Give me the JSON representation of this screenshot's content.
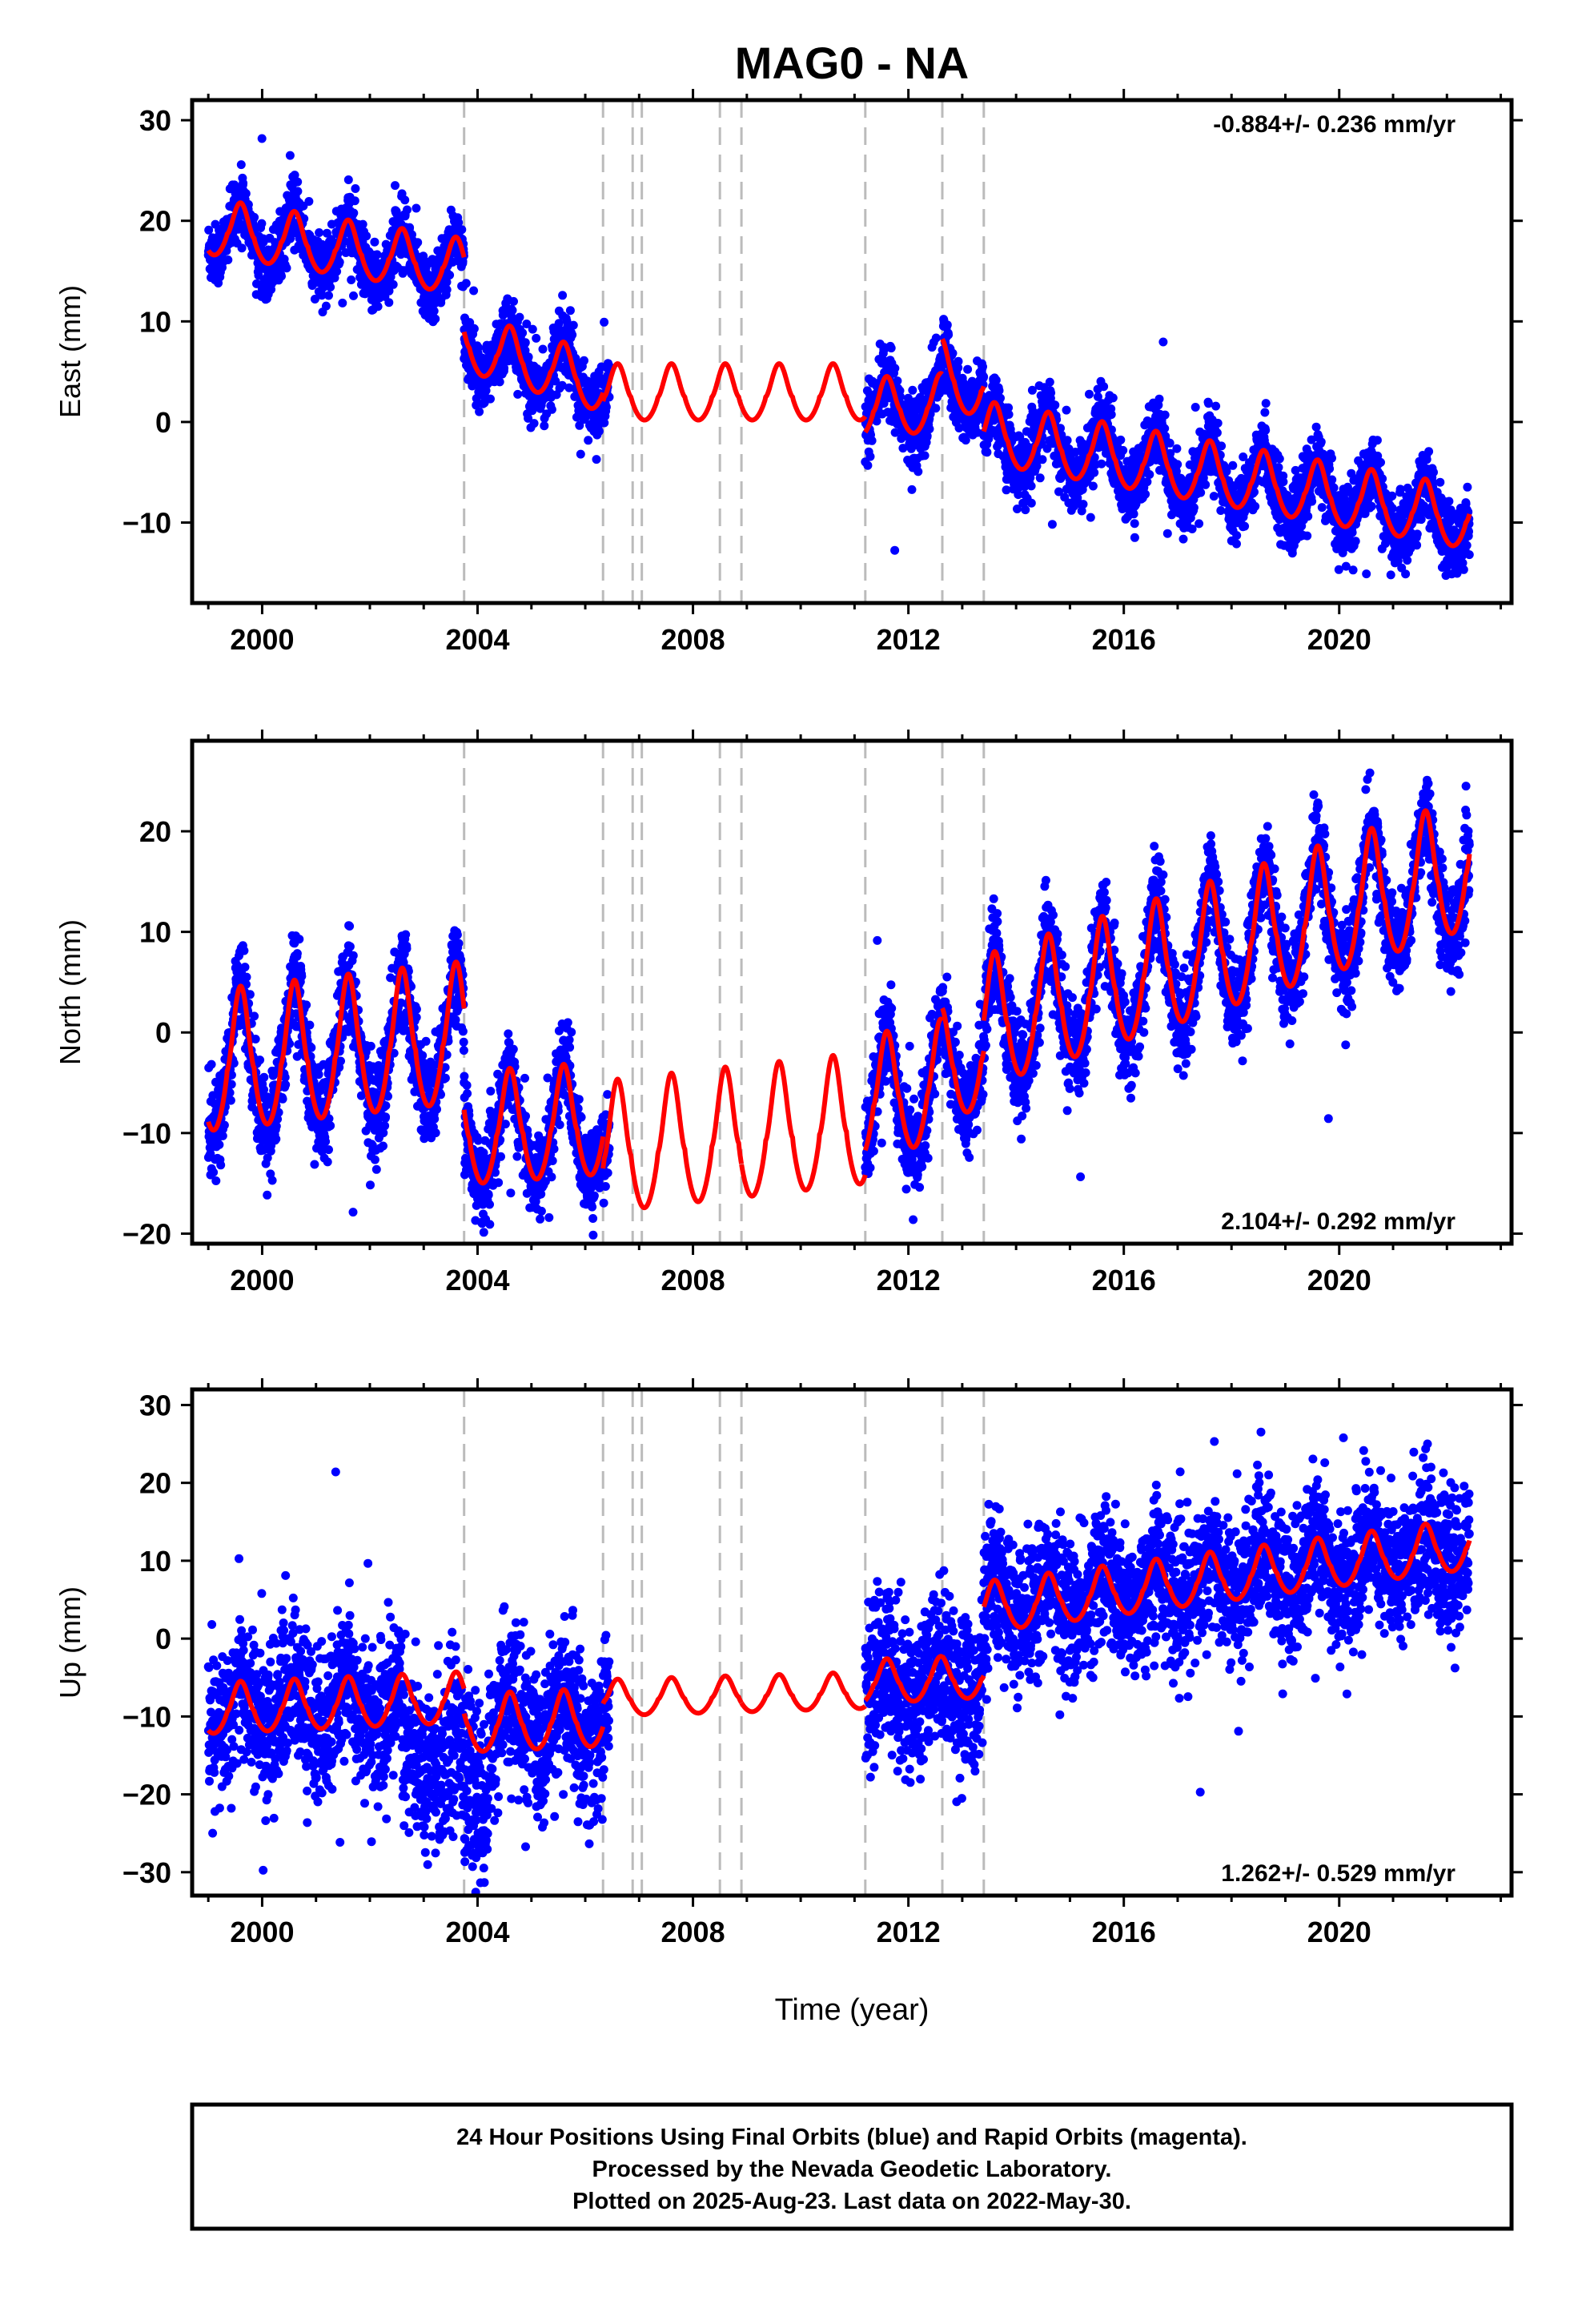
{
  "title": "MAG0 - NA",
  "colors": {
    "final_orbits": "#0000ff",
    "model_fit": "#ff0000",
    "offset_lines": "#bbbbbb"
  },
  "x_axis_label": "Time (year)",
  "caption": [
    "24 Hour Positions Using Final Orbits (blue) and Rapid Orbits (magenta).",
    "Processed by the Nevada Geodetic Laboratory.",
    "Plotted on 2025-Aug-23. Last data on 2022-May-30."
  ],
  "chart_data": [
    {
      "type": "scatter",
      "component": "east",
      "ylabel": "East (mm)",
      "xlabel": "",
      "xlim": [
        1998.7,
        2023.2
      ],
      "ylim": [
        -18,
        32
      ],
      "xticks": [
        2000,
        2004,
        2008,
        2012,
        2016,
        2020
      ],
      "yticks": [
        -10,
        0,
        10,
        20,
        30
      ],
      "rate_label": "-0.884+/- 0.236 mm/yr",
      "rate_position": "top-right",
      "offset_epochs": [
        2003.75,
        2006.33,
        2006.88,
        2007.05,
        2008.5,
        2008.9,
        2011.2,
        2012.63,
        2013.4
      ],
      "model": [
        {
          "start": 1999.0,
          "end": 2003.75,
          "base": 19.0,
          "slope": -0.85,
          "amp": 3.0
        },
        {
          "start": 2003.75,
          "end": 2006.33,
          "base": 7.5,
          "slope": -1.6,
          "amp": 3.1
        },
        {
          "start": 2006.33,
          "end": 2008.9,
          "base": 2.5,
          "slope": 0.0,
          "amp": 3.0
        },
        {
          "start": 2008.9,
          "end": 2011.2,
          "base": 2.5,
          "slope": 0.0,
          "amp": 3.0
        },
        {
          "start": 2011.2,
          "end": 2012.63,
          "base": 1.0,
          "slope": 0.3,
          "amp": 3.1
        },
        {
          "start": 2012.63,
          "end": 2013.4,
          "base": 4.5,
          "slope": -2.0,
          "amp": 3.5
        },
        {
          "start": 2013.4,
          "end": 2022.42,
          "base": -1.5,
          "slope": -0.95,
          "amp": 3.3
        }
      ],
      "data_segments": [
        {
          "start": 1999.0,
          "end": 2003.75,
          "scatter": 1.5
        },
        {
          "start": 2003.75,
          "end": 2006.45,
          "scatter": 1.6
        },
        {
          "start": 2011.2,
          "end": 2022.42,
          "scatter": 1.7
        }
      ]
    },
    {
      "type": "scatter",
      "component": "north",
      "ylabel": "North (mm)",
      "xlabel": "",
      "xlim": [
        1998.7,
        2023.2
      ],
      "ylim": [
        -21,
        29
      ],
      "xticks": [
        2000,
        2004,
        2008,
        2012,
        2016,
        2020
      ],
      "yticks": [
        -20,
        -10,
        0,
        10,
        20
      ],
      "rate_label": "2.104+/- 0.292 mm/yr",
      "rate_position": "bottom-right",
      "offset_epochs": [
        2003.75,
        2006.33,
        2006.88,
        2007.05,
        2008.5,
        2008.9,
        2011.2,
        2012.63,
        2013.4
      ],
      "model": [
        {
          "start": 1999.0,
          "end": 2003.75,
          "base": -4.0,
          "slope": 0.6,
          "amp": 7.5
        },
        {
          "start": 2003.75,
          "end": 2006.33,
          "base": -10.5,
          "slope": 0.4,
          "amp": 6.0
        },
        {
          "start": 2006.33,
          "end": 2008.9,
          "base": -12.5,
          "slope": 0.6,
          "amp": 7.0
        },
        {
          "start": 2008.9,
          "end": 2011.2,
          "base": -11.0,
          "slope": 0.6,
          "amp": 7.0
        },
        {
          "start": 2011.2,
          "end": 2012.63,
          "base": -7.5,
          "slope": 1.2,
          "amp": 6.5
        },
        {
          "start": 2012.63,
          "end": 2013.4,
          "base": -4.0,
          "slope": 1.5,
          "amp": 6.0
        },
        {
          "start": 2013.4,
          "end": 2022.42,
          "base": 0.0,
          "slope": 1.75,
          "amp": 7.0
        }
      ],
      "data_segments": [
        {
          "start": 1999.0,
          "end": 2003.75,
          "scatter": 2.4
        },
        {
          "start": 2003.75,
          "end": 2006.45,
          "scatter": 2.0
        },
        {
          "start": 2011.2,
          "end": 2022.42,
          "scatter": 2.3
        }
      ]
    },
    {
      "type": "scatter",
      "component": "up",
      "ylabel": "Up (mm)",
      "xlabel": "Time (year)",
      "xlim": [
        1998.7,
        2023.2
      ],
      "ylim": [
        -33,
        32
      ],
      "xticks": [
        2000,
        2004,
        2008,
        2012,
        2016,
        2020
      ],
      "yticks": [
        -30,
        -20,
        -10,
        0,
        10,
        20,
        30
      ],
      "rate_label": "1.262+/- 0.529 mm/yr",
      "rate_position": "bottom-right",
      "offset_epochs": [
        2003.75,
        2006.33,
        2006.88,
        2007.05,
        2008.5,
        2008.9,
        2011.2,
        2012.63,
        2013.4
      ],
      "model": [
        {
          "start": 1999.0,
          "end": 2003.75,
          "base": -9.5,
          "slope": 0.3,
          "amp": 3.5
        },
        {
          "start": 2003.75,
          "end": 2006.33,
          "base": -11.5,
          "slope": 0.3,
          "amp": 4.0
        },
        {
          "start": 2006.33,
          "end": 2008.9,
          "base": -8.0,
          "slope": 0.2,
          "amp": 2.5
        },
        {
          "start": 2008.9,
          "end": 2011.2,
          "base": -7.5,
          "slope": 0.2,
          "amp": 2.5
        },
        {
          "start": 2011.2,
          "end": 2012.63,
          "base": -6.0,
          "slope": 0.3,
          "amp": 3.0
        },
        {
          "start": 2012.63,
          "end": 2013.4,
          "base": -5.5,
          "slope": 0.3,
          "amp": 3.0
        },
        {
          "start": 2013.4,
          "end": 2022.42,
          "base": 3.5,
          "slope": 0.9,
          "amp": 3.5
        }
      ],
      "data_segments": [
        {
          "start": 1999.0,
          "end": 2002.6,
          "scatter": 4.8
        },
        {
          "start": 2002.6,
          "end": 2004.2,
          "scatter": 5.5,
          "shift": -7.0
        },
        {
          "start": 2004.2,
          "end": 2006.45,
          "scatter": 4.8
        },
        {
          "start": 2011.2,
          "end": 2013.4,
          "scatter": 5.0
        },
        {
          "start": 2013.4,
          "end": 2022.42,
          "scatter": 4.5
        }
      ]
    }
  ]
}
